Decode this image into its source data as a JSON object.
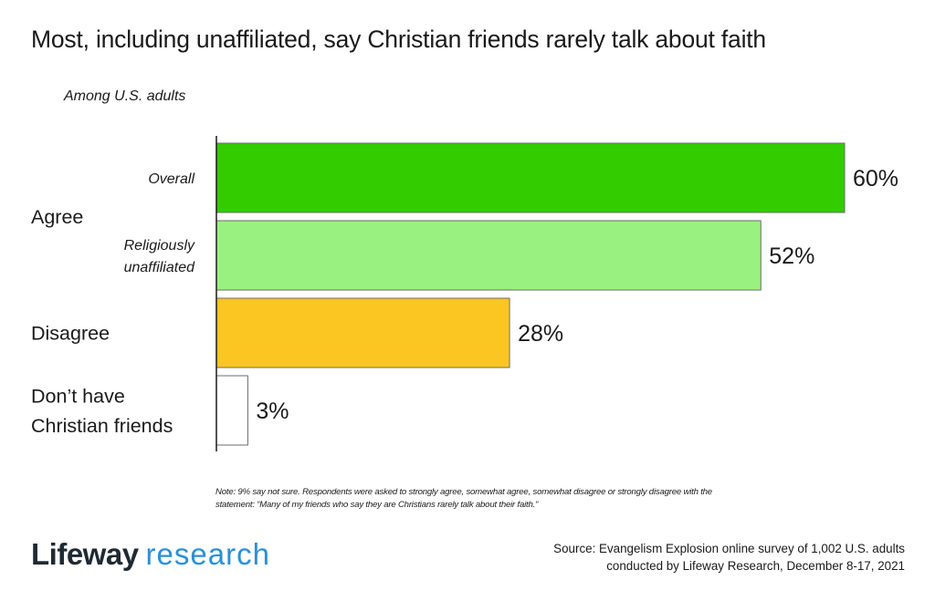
{
  "title": "Most, including unaffiliated, say Christian friends rarely talk about faith",
  "subtitle": "Among U.S. adults",
  "chart_data": {
    "type": "bar",
    "orientation": "horizontal",
    "groups": [
      {
        "label": [
          "Agree"
        ],
        "bars": [
          {
            "label": [
              "Overall"
            ],
            "value": 60,
            "display": "60%",
            "color": "#33cc00"
          },
          {
            "label": [
              "Religiously",
              "unaffiliated"
            ],
            "value": 52,
            "display": "52%",
            "color": "#99f27f"
          }
        ]
      },
      {
        "label": [
          "Disagree"
        ],
        "bars": [
          {
            "label": [],
            "value": 28,
            "display": "28%",
            "color": "#fbc522"
          }
        ]
      },
      {
        "label": [
          "Don’t have",
          "Christian friends"
        ],
        "bars": [
          {
            "label": [],
            "value": 3,
            "display": "3%",
            "color": "#ffffff"
          }
        ]
      }
    ],
    "xlim": [
      0,
      60
    ],
    "grid": false,
    "legend": "none"
  },
  "note": "Note: 9% say not sure. Respondents were asked to strongly agree, somewhat agree, somewhat disagree or strongly disagree with the statement: “Many of my friends who say they are Christians rarely talk about their faith.”",
  "logo": {
    "part1": "Lifeway",
    "part2": "research"
  },
  "source": {
    "line1": "Source: Evangelism Explosion online survey of 1,002 U.S. adults",
    "line2": "conducted by Lifeway Research, December 8-17, 2021"
  }
}
